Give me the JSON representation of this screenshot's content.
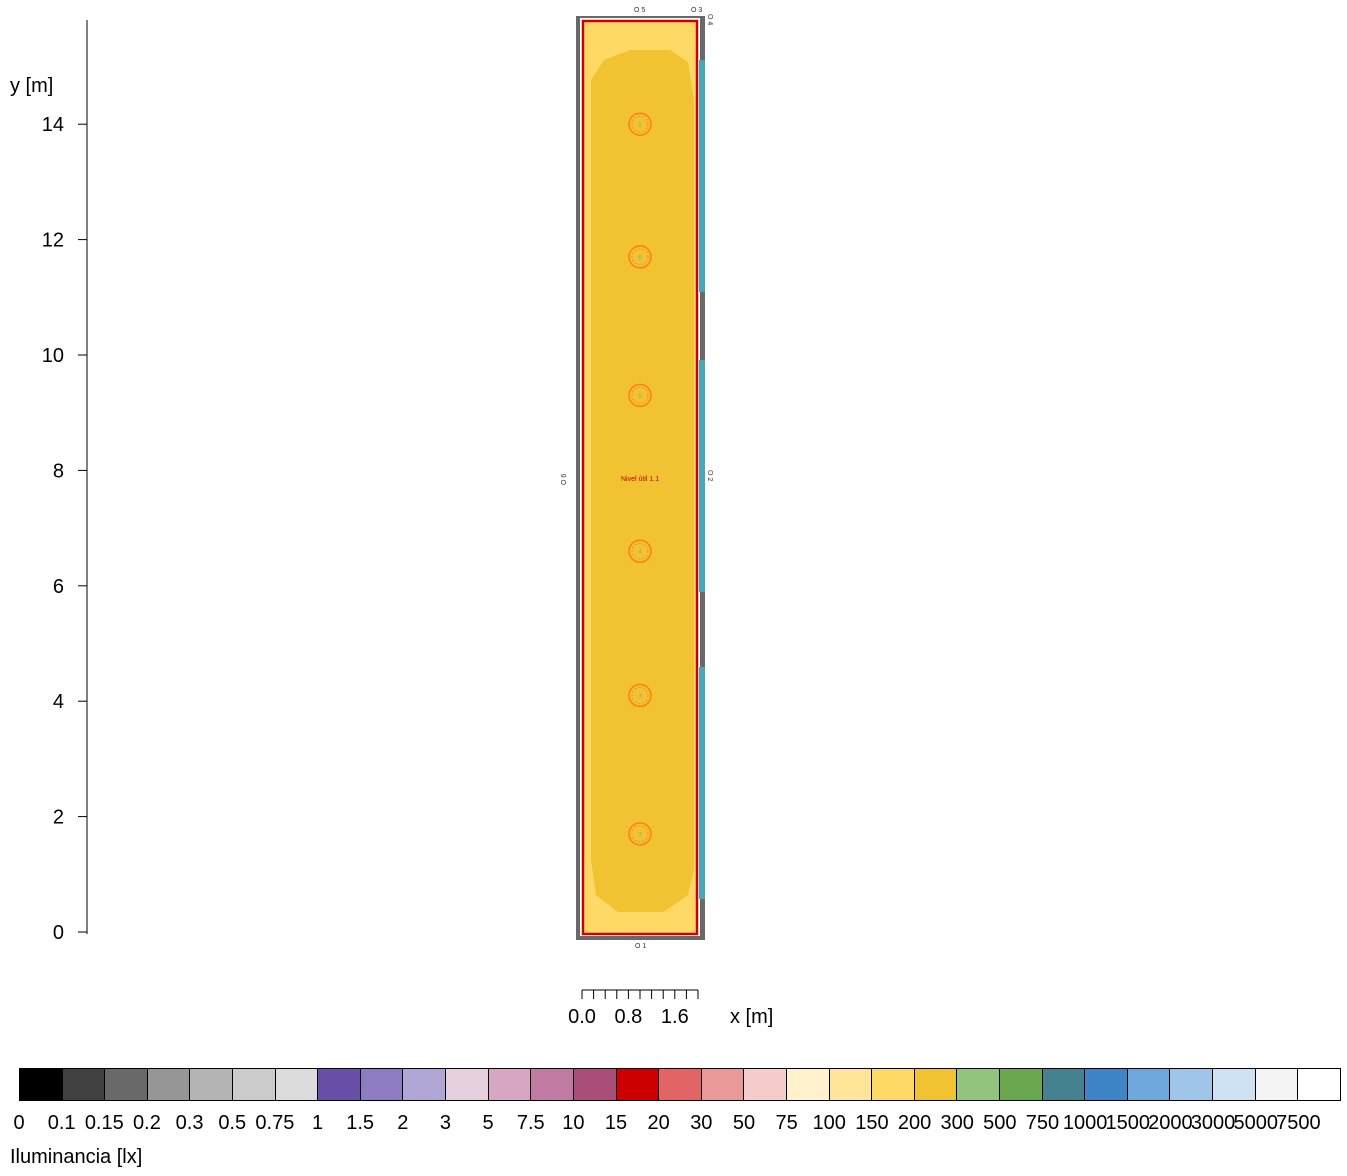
{
  "y_axis": {
    "label": "y [m]",
    "ticks": [
      "0",
      "2",
      "4",
      "6",
      "8",
      "10",
      "12",
      "14"
    ]
  },
  "x_axis": {
    "label": "x [m]",
    "ticks": [
      "0.0",
      "0.8",
      "1.6"
    ]
  },
  "room": {
    "label": "Nivel útil 1.1",
    "width_m": 2.0,
    "length_m": 15.8
  },
  "luminaires": [
    {
      "id": "1",
      "x_m": 1.0,
      "y_m": 14.0
    },
    {
      "id": "6",
      "x_m": 1.0,
      "y_m": 11.7
    },
    {
      "id": "5",
      "x_m": 1.0,
      "y_m": 9.3
    },
    {
      "id": "4",
      "x_m": 1.0,
      "y_m": 6.6
    },
    {
      "id": "3",
      "x_m": 1.0,
      "y_m": 4.1
    },
    {
      "id": "2",
      "x_m": 1.0,
      "y_m": 1.7
    }
  ],
  "markers": [
    {
      "id": "O 1",
      "side": "bottom"
    },
    {
      "id": "O 2",
      "side": "right"
    },
    {
      "id": "O 3",
      "side": "top-right"
    },
    {
      "id": "O 4",
      "side": "top-right-corner"
    },
    {
      "id": "O 5",
      "side": "top"
    },
    {
      "id": "O 6",
      "side": "left"
    }
  ],
  "legend": {
    "title": "Iluminancia [lx]",
    "labels": [
      "0",
      "0.1",
      "0.15",
      "0.2",
      "0.3",
      "0.5",
      "0.75",
      "1",
      "1.5",
      "2",
      "3",
      "5",
      "7.5",
      "10",
      "15",
      "20",
      "30",
      "50",
      "75",
      "100",
      "150",
      "200",
      "300",
      "500",
      "750",
      "1000",
      "1500",
      "2000",
      "3000",
      "5000",
      "7500"
    ],
    "colors": [
      "#000000",
      "#414141",
      "#696969",
      "#969696",
      "#b4b4b4",
      "#cbcbcb",
      "#dcdcdc",
      "#6a4fa8",
      "#8d7cc2",
      "#b2a6d6",
      "#e6d0de",
      "#d7a6c3",
      "#c17ba3",
      "#a84e78",
      "#cc0000",
      "#e36464",
      "#ea9999",
      "#f4cccc",
      "#fff2cc",
      "#ffe599",
      "#ffd966",
      "#f1c232",
      "#93c47d",
      "#6aa84f",
      "#45818e",
      "#3d85c6",
      "#6fa8dc",
      "#9fc5e8",
      "#cfe2f3",
      "#f3f3f3",
      "#ffffff"
    ]
  },
  "colors": {
    "outer_zone": "#ffd966",
    "inner_zone": "#f1c232",
    "room_outline": "#cc0000",
    "wall": "#696969",
    "window": "#45a9b8",
    "luminaire_ring": "#ff7f11"
  }
}
